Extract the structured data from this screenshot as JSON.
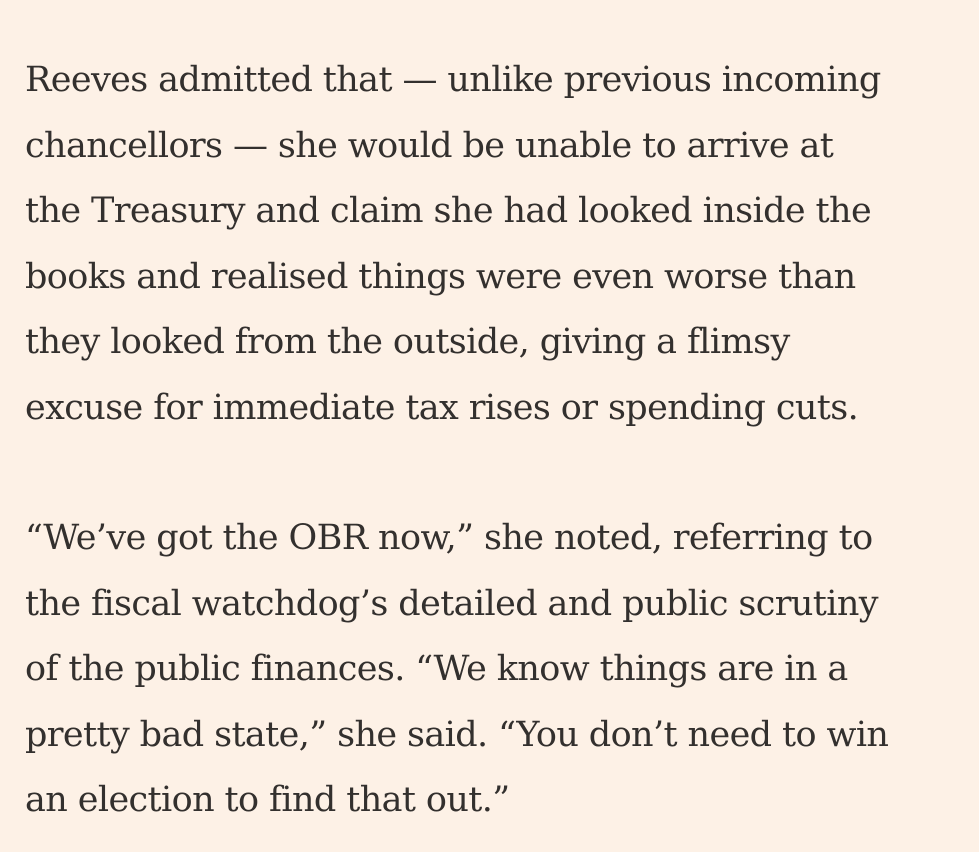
{
  "article": {
    "paragraphs": [
      {
        "lines": [
          "Reeves admitted that — unlike previous incoming",
          "chancellors — she would be unable to arrive at",
          "the Treasury and claim she had looked inside the",
          "books and realised things were even worse than",
          "they looked from the outside, giving a flimsy",
          "excuse for immediate tax rises or spending cuts."
        ]
      },
      {
        "lines": [
          "“We’ve got the OBR now,” she noted, referring to",
          "the fiscal watchdog’s detailed and public scrutiny",
          "of the public finances. “We know things are in a",
          "pretty bad state,” she said. “You don’t need to win",
          "an election to find that out.”"
        ]
      }
    ]
  }
}
